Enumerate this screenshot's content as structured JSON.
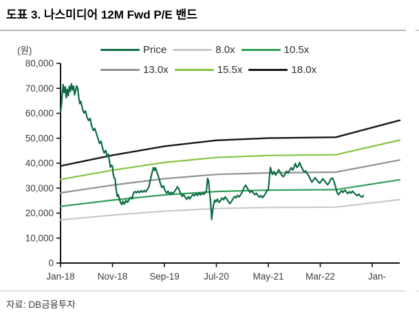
{
  "header": {
    "title": "도표 3. 나스미디어 12M Fwd P/E 밴드"
  },
  "footer": {
    "source": "자료: DB금융투자"
  },
  "chart_data": {
    "type": "line",
    "title": "나스미디어 12M Fwd P/E 밴드",
    "y_unit_label": "(원)",
    "ylim": [
      0,
      80000
    ],
    "yticks": [
      0,
      10000,
      20000,
      30000,
      40000,
      50000,
      60000,
      70000,
      80000
    ],
    "ytick_labels": [
      "0",
      "10,000",
      "20,000",
      "30,000",
      "40,000",
      "50,000",
      "60,000",
      "70,000",
      "80,000"
    ],
    "xlim_months": [
      0,
      65.3
    ],
    "xticks_months": [
      0,
      10,
      20,
      30,
      40,
      50,
      60
    ],
    "xtick_labels": [
      "Jan-18",
      "Nov-18",
      "Sep-19",
      "Jul-20",
      "May-21",
      "Mar-22",
      "Jan-"
    ],
    "grid": false,
    "legend_position": "top-center",
    "axis_color": "#111111",
    "tick_text_color": "#3c3c3c",
    "series": [
      {
        "name": "Price",
        "color": "#0c6b41",
        "width": 2.2,
        "points": [
          [
            0,
            60500
          ],
          [
            0.2,
            64000
          ],
          [
            0.3,
            67000
          ],
          [
            0.5,
            71500
          ],
          [
            0.6,
            69800
          ],
          [
            0.7,
            68300
          ],
          [
            0.9,
            70600
          ],
          [
            1.1,
            66200
          ],
          [
            1.3,
            69600
          ],
          [
            1.5,
            67000
          ],
          [
            1.7,
            70800
          ],
          [
            1.9,
            68800
          ],
          [
            2.1,
            71800
          ],
          [
            2.3,
            69400
          ],
          [
            2.5,
            70900
          ],
          [
            2.7,
            67400
          ],
          [
            2.9,
            69100
          ],
          [
            3.1,
            71000
          ],
          [
            3.3,
            70100
          ],
          [
            3.5,
            66400
          ],
          [
            3.7,
            63900
          ],
          [
            3.9,
            64800
          ],
          [
            4.2,
            62000
          ],
          [
            4.5,
            60100
          ],
          [
            4.8,
            60900
          ],
          [
            5.1,
            58400
          ],
          [
            5.4,
            57100
          ],
          [
            5.7,
            57900
          ],
          [
            6.0,
            54900
          ],
          [
            6.3,
            53100
          ],
          [
            6.6,
            53900
          ],
          [
            6.9,
            51900
          ],
          [
            7.2,
            49900
          ],
          [
            7.5,
            47900
          ],
          [
            7.8,
            48800
          ],
          [
            8.1,
            45900
          ],
          [
            8.4,
            44100
          ],
          [
            8.7,
            45100
          ],
          [
            9.0,
            42700
          ],
          [
            9.2,
            43600
          ],
          [
            9.4,
            40900
          ],
          [
            9.6,
            38400
          ],
          [
            9.8,
            39200
          ],
          [
            10.0,
            38800
          ],
          [
            10.1,
            36000
          ],
          [
            10.3,
            34100
          ],
          [
            10.5,
            33800
          ],
          [
            10.7,
            29500
          ],
          [
            10.9,
            26700
          ],
          [
            11.1,
            27400
          ],
          [
            11.3,
            26100
          ],
          [
            11.5,
            24400
          ],
          [
            11.8,
            23400
          ],
          [
            12.0,
            24800
          ],
          [
            12.3,
            23600
          ],
          [
            12.6,
            25100
          ],
          [
            12.9,
            24300
          ],
          [
            13.2,
            25500
          ],
          [
            13.5,
            26300
          ],
          [
            13.8,
            25700
          ],
          [
            14.0,
            27900
          ],
          [
            14.3,
            28700
          ],
          [
            14.6,
            28100
          ],
          [
            14.9,
            28800
          ],
          [
            15.2,
            28200
          ],
          [
            15.5,
            29000
          ],
          [
            15.8,
            28400
          ],
          [
            16.1,
            29100
          ],
          [
            16.4,
            28500
          ],
          [
            16.7,
            29500
          ],
          [
            17.0,
            30400
          ],
          [
            17.3,
            33400
          ],
          [
            17.6,
            36100
          ],
          [
            17.9,
            38300
          ],
          [
            18.1,
            37100
          ],
          [
            18.3,
            38100
          ],
          [
            18.6,
            36000
          ],
          [
            18.9,
            34400
          ],
          [
            19.2,
            32000
          ],
          [
            19.5,
            30300
          ],
          [
            19.8,
            30900
          ],
          [
            20.1,
            29100
          ],
          [
            20.4,
            28000
          ],
          [
            20.7,
            28800
          ],
          [
            21.0,
            27500
          ],
          [
            21.3,
            28400
          ],
          [
            21.6,
            27700
          ],
          [
            21.9,
            28500
          ],
          [
            22.2,
            29400
          ],
          [
            22.5,
            30600
          ],
          [
            22.8,
            29500
          ],
          [
            23.1,
            27900
          ],
          [
            23.4,
            26700
          ],
          [
            23.7,
            27400
          ],
          [
            24.0,
            26300
          ],
          [
            24.3,
            25500
          ],
          [
            24.6,
            26600
          ],
          [
            24.9,
            25700
          ],
          [
            25.2,
            26800
          ],
          [
            25.5,
            27500
          ],
          [
            25.8,
            26900
          ],
          [
            26.1,
            27800
          ],
          [
            26.4,
            27100
          ],
          [
            26.7,
            28000
          ],
          [
            27.0,
            27300
          ],
          [
            27.3,
            28100
          ],
          [
            27.6,
            27500
          ],
          [
            27.9,
            28300
          ],
          [
            28.1,
            29100
          ],
          [
            28.3,
            33900
          ],
          [
            28.5,
            32900
          ],
          [
            28.7,
            28100
          ],
          [
            28.9,
            23900
          ],
          [
            29.1,
            17500
          ],
          [
            29.3,
            21400
          ],
          [
            29.5,
            23900
          ],
          [
            29.7,
            25200
          ],
          [
            29.9,
            24500
          ],
          [
            30.2,
            25600
          ],
          [
            30.5,
            24300
          ],
          [
            30.8,
            25000
          ],
          [
            31.1,
            26100
          ],
          [
            31.4,
            25300
          ],
          [
            31.7,
            26500
          ],
          [
            32.0,
            25700
          ],
          [
            32.3,
            24600
          ],
          [
            32.6,
            23800
          ],
          [
            32.9,
            24700
          ],
          [
            33.2,
            25800
          ],
          [
            33.5,
            26700
          ],
          [
            33.8,
            26100
          ],
          [
            34.1,
            27100
          ],
          [
            34.4,
            26500
          ],
          [
            34.7,
            27500
          ],
          [
            35.0,
            28500
          ],
          [
            35.3,
            30100
          ],
          [
            35.6,
            31200
          ],
          [
            35.9,
            30300
          ],
          [
            36.2,
            29100
          ],
          [
            36.5,
            28300
          ],
          [
            36.8,
            29000
          ],
          [
            37.1,
            28100
          ],
          [
            37.4,
            27400
          ],
          [
            37.7,
            28000
          ],
          [
            38.0,
            27100
          ],
          [
            38.3,
            26400
          ],
          [
            38.6,
            27000
          ],
          [
            38.9,
            26200
          ],
          [
            39.2,
            27000
          ],
          [
            39.5,
            28000
          ],
          [
            39.8,
            29100
          ],
          [
            40.0,
            29400
          ],
          [
            40.2,
            34000
          ],
          [
            40.4,
            38300
          ],
          [
            40.6,
            36900
          ],
          [
            40.8,
            35500
          ],
          [
            41.1,
            36600
          ],
          [
            41.4,
            35200
          ],
          [
            41.7,
            36200
          ],
          [
            42.0,
            37400
          ],
          [
            42.3,
            36300
          ],
          [
            42.6,
            35100
          ],
          [
            42.9,
            34600
          ],
          [
            43.2,
            35600
          ],
          [
            43.5,
            36800
          ],
          [
            43.8,
            36000
          ],
          [
            44.1,
            37100
          ],
          [
            44.4,
            38200
          ],
          [
            44.7,
            37300
          ],
          [
            45.0,
            38600
          ],
          [
            45.2,
            39900
          ],
          [
            45.5,
            38300
          ],
          [
            45.8,
            39000
          ],
          [
            46.0,
            40300
          ],
          [
            46.3,
            38800
          ],
          [
            46.6,
            37600
          ],
          [
            46.9,
            36400
          ],
          [
            47.2,
            36900
          ],
          [
            47.5,
            35800
          ],
          [
            47.8,
            34800
          ],
          [
            48.1,
            33600
          ],
          [
            48.4,
            32400
          ],
          [
            48.7,
            33300
          ],
          [
            49.0,
            34200
          ],
          [
            49.3,
            33400
          ],
          [
            49.6,
            32600
          ],
          [
            49.9,
            32000
          ],
          [
            50.2,
            32900
          ],
          [
            50.5,
            33800
          ],
          [
            50.8,
            33000
          ],
          [
            51.1,
            32100
          ],
          [
            51.4,
            31400
          ],
          [
            51.7,
            32100
          ],
          [
            52.0,
            33600
          ],
          [
            52.3,
            34100
          ],
          [
            52.6,
            32900
          ],
          [
            52.9,
            30900
          ],
          [
            53.2,
            28500
          ],
          [
            53.5,
            27400
          ],
          [
            53.8,
            28200
          ],
          [
            54.1,
            29000
          ],
          [
            54.4,
            28300
          ],
          [
            54.7,
            29200
          ],
          [
            55.0,
            28600
          ],
          [
            55.3,
            27800
          ],
          [
            55.6,
            28600
          ],
          [
            55.9,
            28000
          ],
          [
            56.2,
            28800
          ],
          [
            56.5,
            28100
          ],
          [
            56.8,
            27500
          ],
          [
            57.1,
            27000
          ],
          [
            57.4,
            27600
          ],
          [
            57.7,
            26800
          ],
          [
            58.0,
            26400
          ],
          [
            58.3,
            27000
          ]
        ]
      },
      {
        "name": "8.0x",
        "color": "#c9c9c9",
        "width": 2.2,
        "points": [
          [
            0,
            17300
          ],
          [
            10,
            19200
          ],
          [
            20,
            20800
          ],
          [
            30,
            21850
          ],
          [
            40,
            22250
          ],
          [
            53,
            22400
          ],
          [
            65.3,
            25400
          ]
        ]
      },
      {
        "name": "10.5x",
        "color": "#2f9e57",
        "width": 2.2,
        "points": [
          [
            0,
            22700
          ],
          [
            10,
            25200
          ],
          [
            20,
            27300
          ],
          [
            30,
            28650
          ],
          [
            40,
            29200
          ],
          [
            53,
            29400
          ],
          [
            65.3,
            33350
          ]
        ]
      },
      {
        "name": "13.0x",
        "color": "#919191",
        "width": 2.2,
        "points": [
          [
            0,
            28100
          ],
          [
            10,
            31200
          ],
          [
            20,
            33800
          ],
          [
            30,
            35500
          ],
          [
            40,
            36150
          ],
          [
            53,
            36400
          ],
          [
            65.3,
            41300
          ]
        ]
      },
      {
        "name": "15.5x",
        "color": "#85c441",
        "width": 2.2,
        "points": [
          [
            0,
            33500
          ],
          [
            10,
            37200
          ],
          [
            20,
            40300
          ],
          [
            30,
            42300
          ],
          [
            40,
            43100
          ],
          [
            53,
            43400
          ],
          [
            65.3,
            49250
          ]
        ]
      },
      {
        "name": "18.0x",
        "color": "#161616",
        "width": 2.4,
        "points": [
          [
            0,
            38900
          ],
          [
            10,
            43200
          ],
          [
            20,
            46800
          ],
          [
            30,
            49150
          ],
          [
            40,
            50050
          ],
          [
            53,
            50400
          ],
          [
            65.3,
            57200
          ]
        ]
      }
    ]
  }
}
